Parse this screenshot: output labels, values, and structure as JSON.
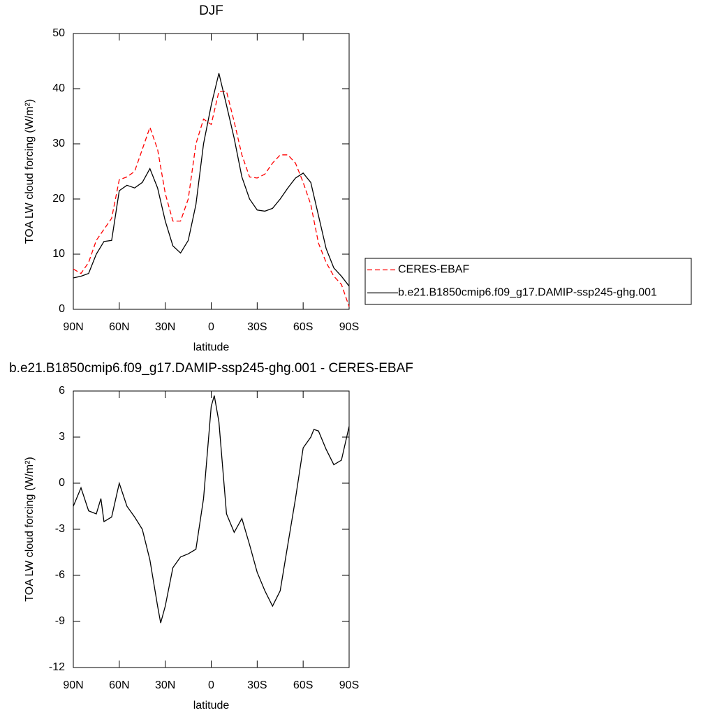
{
  "chart_data": [
    {
      "type": "line",
      "title": "DJF",
      "x_label": "latitude",
      "y_label": "TOA LW cloud forcing (W/m²)",
      "x": [
        90,
        85,
        80,
        75,
        70,
        65,
        60,
        55,
        50,
        45,
        40,
        35,
        30,
        25,
        20,
        15,
        10,
        5,
        0,
        -5,
        -10,
        -15,
        -20,
        -25,
        -30,
        -35,
        -40,
        -45,
        -50,
        -55,
        -60,
        -65,
        -70,
        -75,
        -80,
        -85,
        -90
      ],
      "series": [
        {
          "name": "CERES-EBAF",
          "color": "#ff0000",
          "line_style": "dashed",
          "values": [
            7.3,
            6.5,
            8.5,
            12.5,
            14.5,
            16.5,
            23.5,
            24.0,
            25.0,
            29.0,
            33.0,
            29.0,
            21.0,
            16.0,
            16.0,
            20.0,
            30.0,
            34.5,
            33.5,
            39.5,
            39.5,
            34.0,
            28.0,
            24.0,
            23.8,
            24.5,
            26.5,
            28.0,
            28.0,
            26.5,
            23.0,
            19.0,
            12.0,
            8.5,
            6.0,
            4.5,
            0.5
          ]
        },
        {
          "name": "b.e21.B1850cmip6.f09_g17.DAMIP-ssp245-ghg.001",
          "color": "#000000",
          "line_style": "solid",
          "values": [
            5.7,
            6.0,
            6.5,
            10.0,
            12.3,
            12.5,
            21.5,
            22.5,
            22.0,
            23.0,
            25.5,
            22.0,
            16.0,
            11.5,
            10.2,
            12.5,
            19.0,
            30.0,
            37.0,
            42.8,
            37.0,
            31.0,
            24.0,
            20.0,
            18.0,
            17.8,
            18.3,
            20.0,
            22.0,
            23.8,
            24.7,
            23.0,
            17.0,
            11.0,
            7.5,
            6.0,
            4.2
          ]
        }
      ],
      "xlim": [
        90,
        -90
      ],
      "xticks": [
        {
          "value": 90,
          "label": "90N"
        },
        {
          "value": 60,
          "label": "60N"
        },
        {
          "value": 30,
          "label": "30N"
        },
        0,
        {
          "value": -30,
          "label": "30S"
        },
        {
          "value": -60,
          "label": "60S"
        },
        {
          "value": -90,
          "label": "90S"
        }
      ],
      "ylim": [
        0,
        50
      ],
      "yticks": [
        0,
        10,
        20,
        30,
        40,
        50
      ],
      "legend": "right"
    },
    {
      "type": "line",
      "title": "b.e21.B1850cmip6.f09_g17.DAMIP-ssp245-ghg.001 - CERES-EBAF",
      "x_label": "latitude",
      "y_label": "TOA LW cloud forcing (W/m²)",
      "x": [
        90,
        85,
        80,
        75,
        72,
        70,
        65,
        60,
        55,
        50,
        45,
        40,
        35,
        33,
        30,
        25,
        20,
        15,
        10,
        5,
        0,
        -2,
        -5,
        -10,
        -15,
        -20,
        -25,
        -30,
        -35,
        -40,
        -45,
        -50,
        -55,
        -60,
        -65,
        -67,
        -70,
        -75,
        -80,
        -85,
        -90
      ],
      "series": [
        {
          "color": "#000000",
          "line_style": "solid",
          "values": [
            -1.5,
            -0.3,
            -1.8,
            -2.0,
            -1.0,
            -2.5,
            -2.2,
            0.0,
            -1.5,
            -2.2,
            -3.0,
            -5.0,
            -8.0,
            -9.1,
            -8.0,
            -5.5,
            -4.8,
            -4.6,
            -4.3,
            -1.0,
            5.0,
            5.7,
            4.0,
            -2.0,
            -3.2,
            -2.3,
            -4.0,
            -5.8,
            -7.0,
            -8.0,
            -7.0,
            -4.0,
            -1.0,
            2.3,
            3.0,
            3.5,
            3.4,
            2.2,
            1.2,
            1.5,
            3.7
          ]
        }
      ],
      "xlim": [
        90,
        -90
      ],
      "xticks": [
        {
          "value": 90,
          "label": "90N"
        },
        {
          "value": 60,
          "label": "60N"
        },
        {
          "value": 30,
          "label": "30N"
        },
        0,
        {
          "value": -30,
          "label": "30S"
        },
        {
          "value": -60,
          "label": "60S"
        },
        {
          "value": -90,
          "label": "90S"
        }
      ],
      "ylim": [
        -12,
        6
      ],
      "yticks": [
        -12,
        -9,
        -6,
        -3,
        0,
        3,
        6
      ]
    }
  ]
}
